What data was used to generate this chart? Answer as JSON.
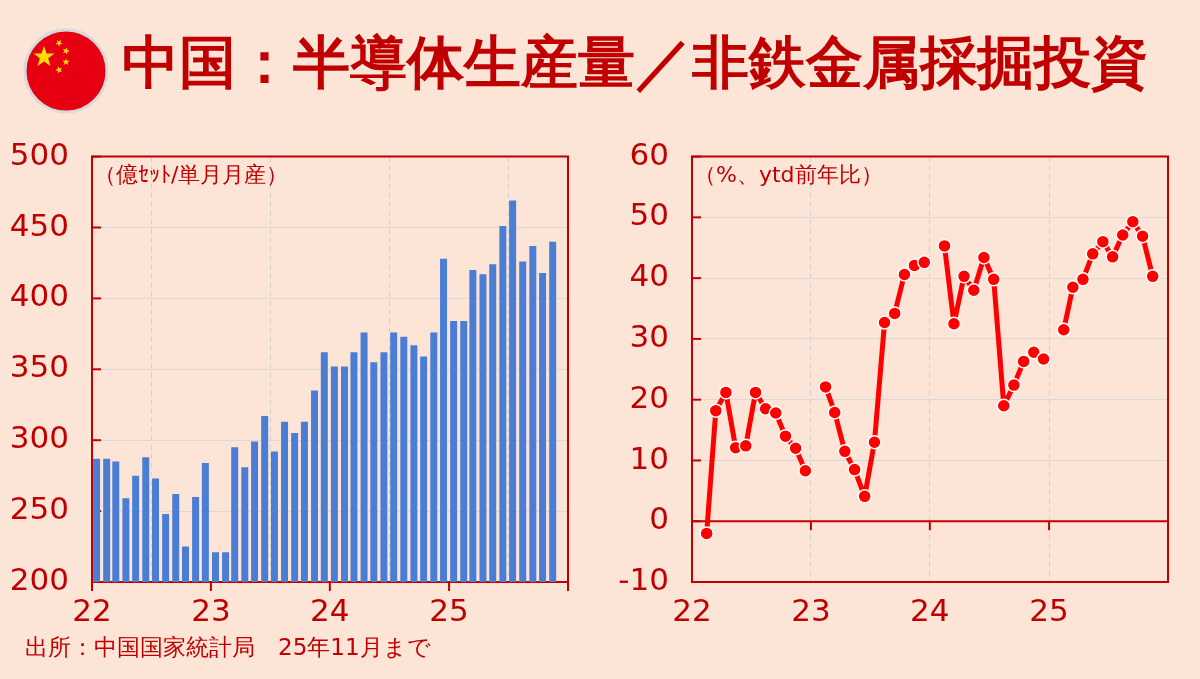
{
  "chart_data": [
    {
      "type": "bar",
      "title": "中国：半導体生産量／非鉄金属採掘投資",
      "ylabel": "（億ｾｯﾄ/単月月産）",
      "annotations": [
        "出所：中国国家統計局　25年11月まで"
      ],
      "x": [
        "2022-01-15",
        "2022-02-15",
        "2022-03-15",
        "2022-04-15",
        "2022-05-15",
        "2022-06-15",
        "2022-07-15",
        "2022-08-15",
        "2022-09-15",
        "2022-10-15",
        "2022-11-15",
        "2022-12-15",
        "2023-01-15",
        "2023-02-15",
        "2023-03-15",
        "2023-04-15",
        "2023-05-15",
        "2023-06-15",
        "2023-07-15",
        "2023-08-15",
        "2023-09-15",
        "2023-10-15",
        "2023-11-15",
        "2023-12-15",
        "2024-01-15",
        "2024-02-15",
        "2024-03-15",
        "2024-04-15",
        "2024-05-15",
        "2024-06-15",
        "2024-07-15",
        "2024-08-15",
        "2024-09-15",
        "2024-10-15",
        "2024-11-15",
        "2024-12-15",
        "2025-01-15",
        "2025-02-15",
        "2025-03-15",
        "2025-04-15",
        "2025-05-15",
        "2025-06-15",
        "2025-07-15",
        "2025-08-15",
        "2025-09-15",
        "2025-10-15",
        "2025-11-15"
      ],
      "values": [
        287,
        287,
        285,
        259,
        275,
        288,
        273,
        248,
        262,
        225,
        260,
        284,
        221,
        221,
        295,
        281,
        299,
        317,
        292,
        313,
        305,
        313,
        335,
        362,
        352,
        352,
        362,
        376,
        355,
        362,
        376,
        373,
        367,
        359,
        376,
        428,
        384,
        384,
        420,
        417,
        424,
        451,
        469,
        426,
        437,
        418,
        440
      ],
      "color": "#4a7dd4",
      "xlim": [
        "2022-01",
        "2026-01"
      ],
      "xticks": [
        {
          "value": "2022-01",
          "label": "22"
        },
        {
          "value": "2023-01",
          "label": "23"
        },
        {
          "value": "2024-01",
          "label": "24"
        },
        {
          "value": "2025-01",
          "label": "25"
        },
        {
          "value": "2026-01",
          "label": null
        }
      ],
      "ylim": [
        200,
        500
      ],
      "yticks": [
        200,
        250,
        300,
        350,
        400,
        450,
        500
      ],
      "grid": true
    },
    {
      "type": "line",
      "ylabel": "（%、ytd前年比）",
      "x": [
        "2022-02-15",
        "2022-03-15",
        "2022-04-15",
        "2022-05-15",
        "2022-06-15",
        "2022-07-15",
        "2022-08-15",
        "2022-09-15",
        "2022-10-15",
        "2022-11-15",
        "2022-12-15",
        "2023-01-15",
        "2023-02-15",
        "2023-03-15",
        "2023-04-15",
        "2023-05-15",
        "2023-06-15",
        "2023-07-15",
        "2023-08-15",
        "2023-09-15",
        "2023-10-15",
        "2023-11-15",
        "2023-12-15",
        "2024-01-15",
        "2024-02-15",
        "2024-03-15",
        "2024-04-15",
        "2024-05-15",
        "2024-06-15",
        "2024-07-15",
        "2024-08-15",
        "2024-09-15",
        "2024-10-15",
        "2024-11-15",
        "2024-12-15",
        "2025-01-15",
        "2025-02-15",
        "2025-03-15",
        "2025-04-15",
        "2025-05-15",
        "2025-06-15",
        "2025-07-15",
        "2025-08-15",
        "2025-09-15",
        "2025-10-15",
        "2025-11-15"
      ],
      "values": [
        -2.0,
        18.2,
        21.2,
        12.1,
        12.4,
        21.2,
        18.5,
        17.8,
        14.0,
        12.0,
        8.3,
        null,
        22.1,
        17.9,
        11.5,
        8.5,
        4.1,
        13.0,
        32.7,
        34.2,
        40.6,
        42.1,
        42.6,
        null,
        45.3,
        32.5,
        40.3,
        38.0,
        43.4,
        39.8,
        19.0,
        22.4,
        26.3,
        27.8,
        26.7,
        null,
        31.5,
        38.5,
        39.8,
        44.0,
        46.0,
        43.5,
        47.1,
        49.3,
        46.9,
        40.3
      ],
      "color": "#ff0000",
      "marker": "circle",
      "line_style": "solid",
      "ref_lines": [
        {
          "axis": "y",
          "value": 0,
          "color": "#c00000"
        }
      ],
      "xlim": [
        "2022-01",
        "2026-01"
      ],
      "xticks": [
        {
          "value": "2022-01",
          "label": "22"
        },
        {
          "value": "2023-01",
          "label": "23"
        },
        {
          "value": "2024-01",
          "label": "24"
        },
        {
          "value": "2025-01",
          "label": "25"
        },
        {
          "value": "2026-01",
          "label": null
        }
      ],
      "ylim": [
        -10,
        60
      ],
      "yticks": [
        -10,
        0,
        10,
        20,
        30,
        40,
        50,
        60
      ],
      "grid": true
    }
  ]
}
